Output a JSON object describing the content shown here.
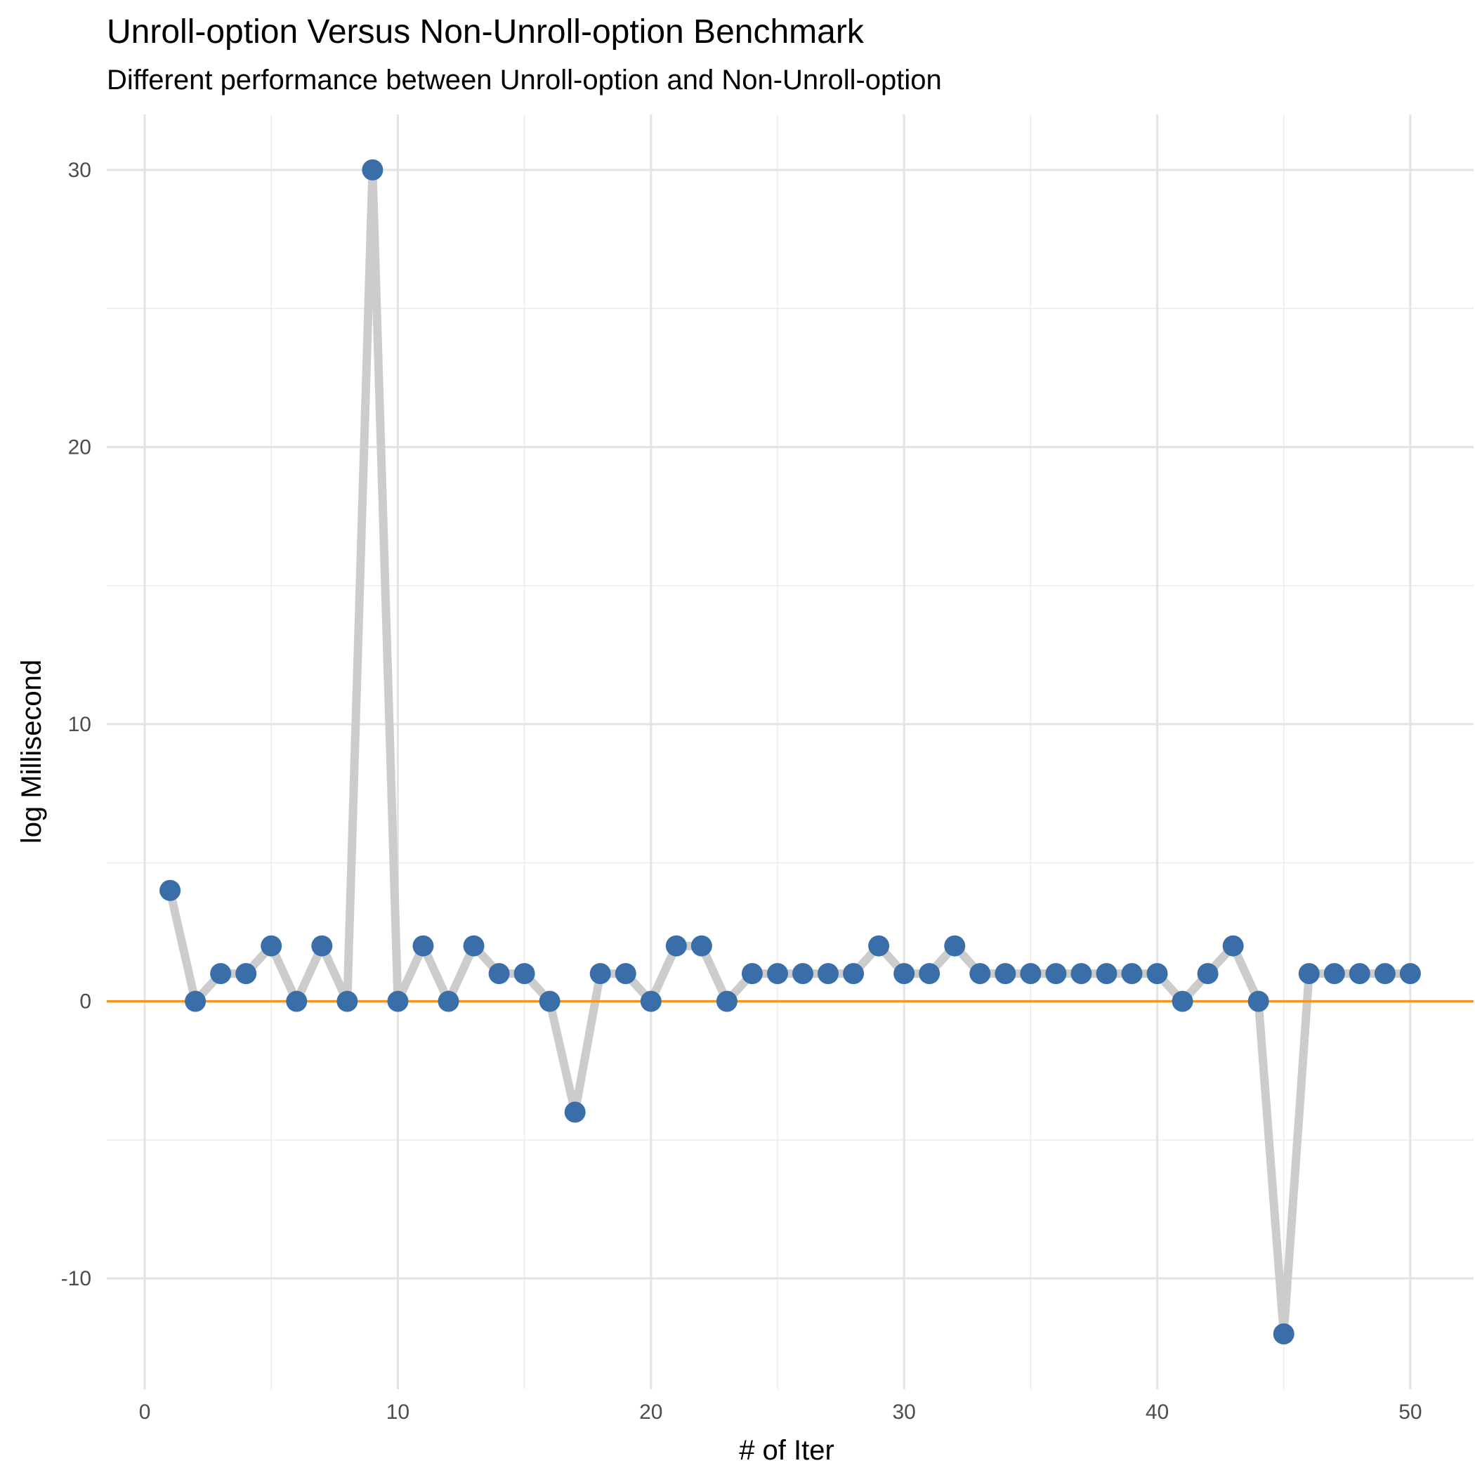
{
  "chart_data": {
    "type": "line",
    "title": "Unroll-option Versus Non-Unroll-option Benchmark",
    "subtitle": "Different performance between Unroll-option and Non-Unroll-option",
    "xlabel": "# of Iter",
    "ylabel": "log Millisecond",
    "xlim": [
      -1.5,
      52.5
    ],
    "ylim": [
      -14,
      32
    ],
    "x_ticks": [
      0,
      10,
      20,
      30,
      40,
      50
    ],
    "x_tick_labels": [
      "0",
      "10",
      "20",
      "30",
      "40",
      "50"
    ],
    "y_ticks": [
      -10,
      0,
      10,
      20,
      30
    ],
    "y_tick_labels": [
      "-10",
      "0",
      "10",
      "20",
      "30"
    ],
    "grid": true,
    "reference_line": {
      "y": 0,
      "color": "#F5961E"
    },
    "line_color": "#CCCCCC",
    "point_color": "#3A6EA8",
    "x": [
      1,
      2,
      3,
      4,
      5,
      6,
      7,
      8,
      9,
      10,
      11,
      12,
      13,
      14,
      15,
      16,
      17,
      18,
      19,
      20,
      21,
      22,
      23,
      24,
      25,
      26,
      27,
      28,
      29,
      30,
      31,
      32,
      33,
      34,
      35,
      36,
      37,
      38,
      39,
      40,
      41,
      42,
      43,
      44,
      45,
      46,
      47,
      48,
      49,
      50
    ],
    "values": [
      4,
      0,
      1,
      1,
      2,
      0,
      2,
      0,
      30,
      0,
      2,
      0,
      2,
      1,
      1,
      0,
      -4,
      1,
      1,
      0,
      2,
      2,
      0,
      1,
      1,
      1,
      1,
      1,
      2,
      1,
      1,
      2,
      1,
      1,
      1,
      1,
      1,
      1,
      1,
      1,
      0,
      1,
      2,
      0,
      -12,
      1,
      1,
      1,
      1,
      1
    ]
  }
}
